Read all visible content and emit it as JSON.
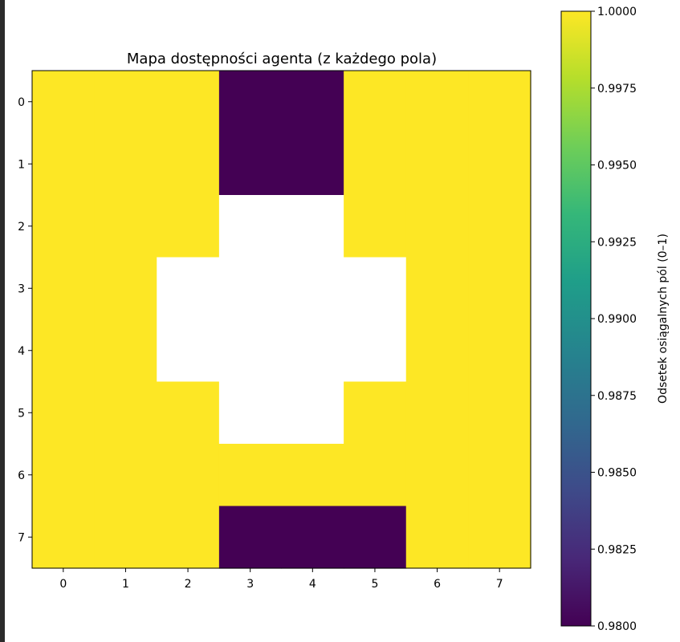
{
  "chart_data": {
    "type": "heatmap",
    "title": "Mapa dostępności agenta (z każdego pola)",
    "x_ticks": [
      "0",
      "1",
      "2",
      "3",
      "4",
      "5",
      "6",
      "7"
    ],
    "y_ticks": [
      "0",
      "1",
      "2",
      "3",
      "4",
      "5",
      "6",
      "7"
    ],
    "grid": [
      [
        1.0,
        1.0,
        1.0,
        0.98,
        0.98,
        1.0,
        1.0,
        1.0
      ],
      [
        1.0,
        1.0,
        1.0,
        0.98,
        0.98,
        1.0,
        1.0,
        1.0
      ],
      [
        1.0,
        1.0,
        1.0,
        null,
        null,
        1.0,
        1.0,
        1.0
      ],
      [
        1.0,
        1.0,
        null,
        null,
        null,
        null,
        1.0,
        1.0
      ],
      [
        1.0,
        1.0,
        null,
        null,
        null,
        null,
        1.0,
        1.0
      ],
      [
        1.0,
        1.0,
        1.0,
        null,
        null,
        1.0,
        1.0,
        1.0
      ],
      [
        1.0,
        1.0,
        1.0,
        1.0,
        1.0,
        1.0,
        1.0,
        1.0
      ],
      [
        1.0,
        1.0,
        1.0,
        0.98,
        0.98,
        0.98,
        1.0,
        1.0
      ]
    ],
    "colorbar": {
      "label": "Odsetek osiągalnych pól (0–1)",
      "min": 0.98,
      "max": 1.0,
      "ticks": [
        "1.0000",
        "0.9975",
        "0.9950",
        "0.9925",
        "0.9900",
        "0.9875",
        "0.9850",
        "0.9825",
        "0.9800"
      ],
      "colormap": "viridis"
    },
    "colors": {
      "low": "#440154",
      "high": "#fde725",
      "missing": "#ffffff"
    },
    "grid_lines": false
  }
}
